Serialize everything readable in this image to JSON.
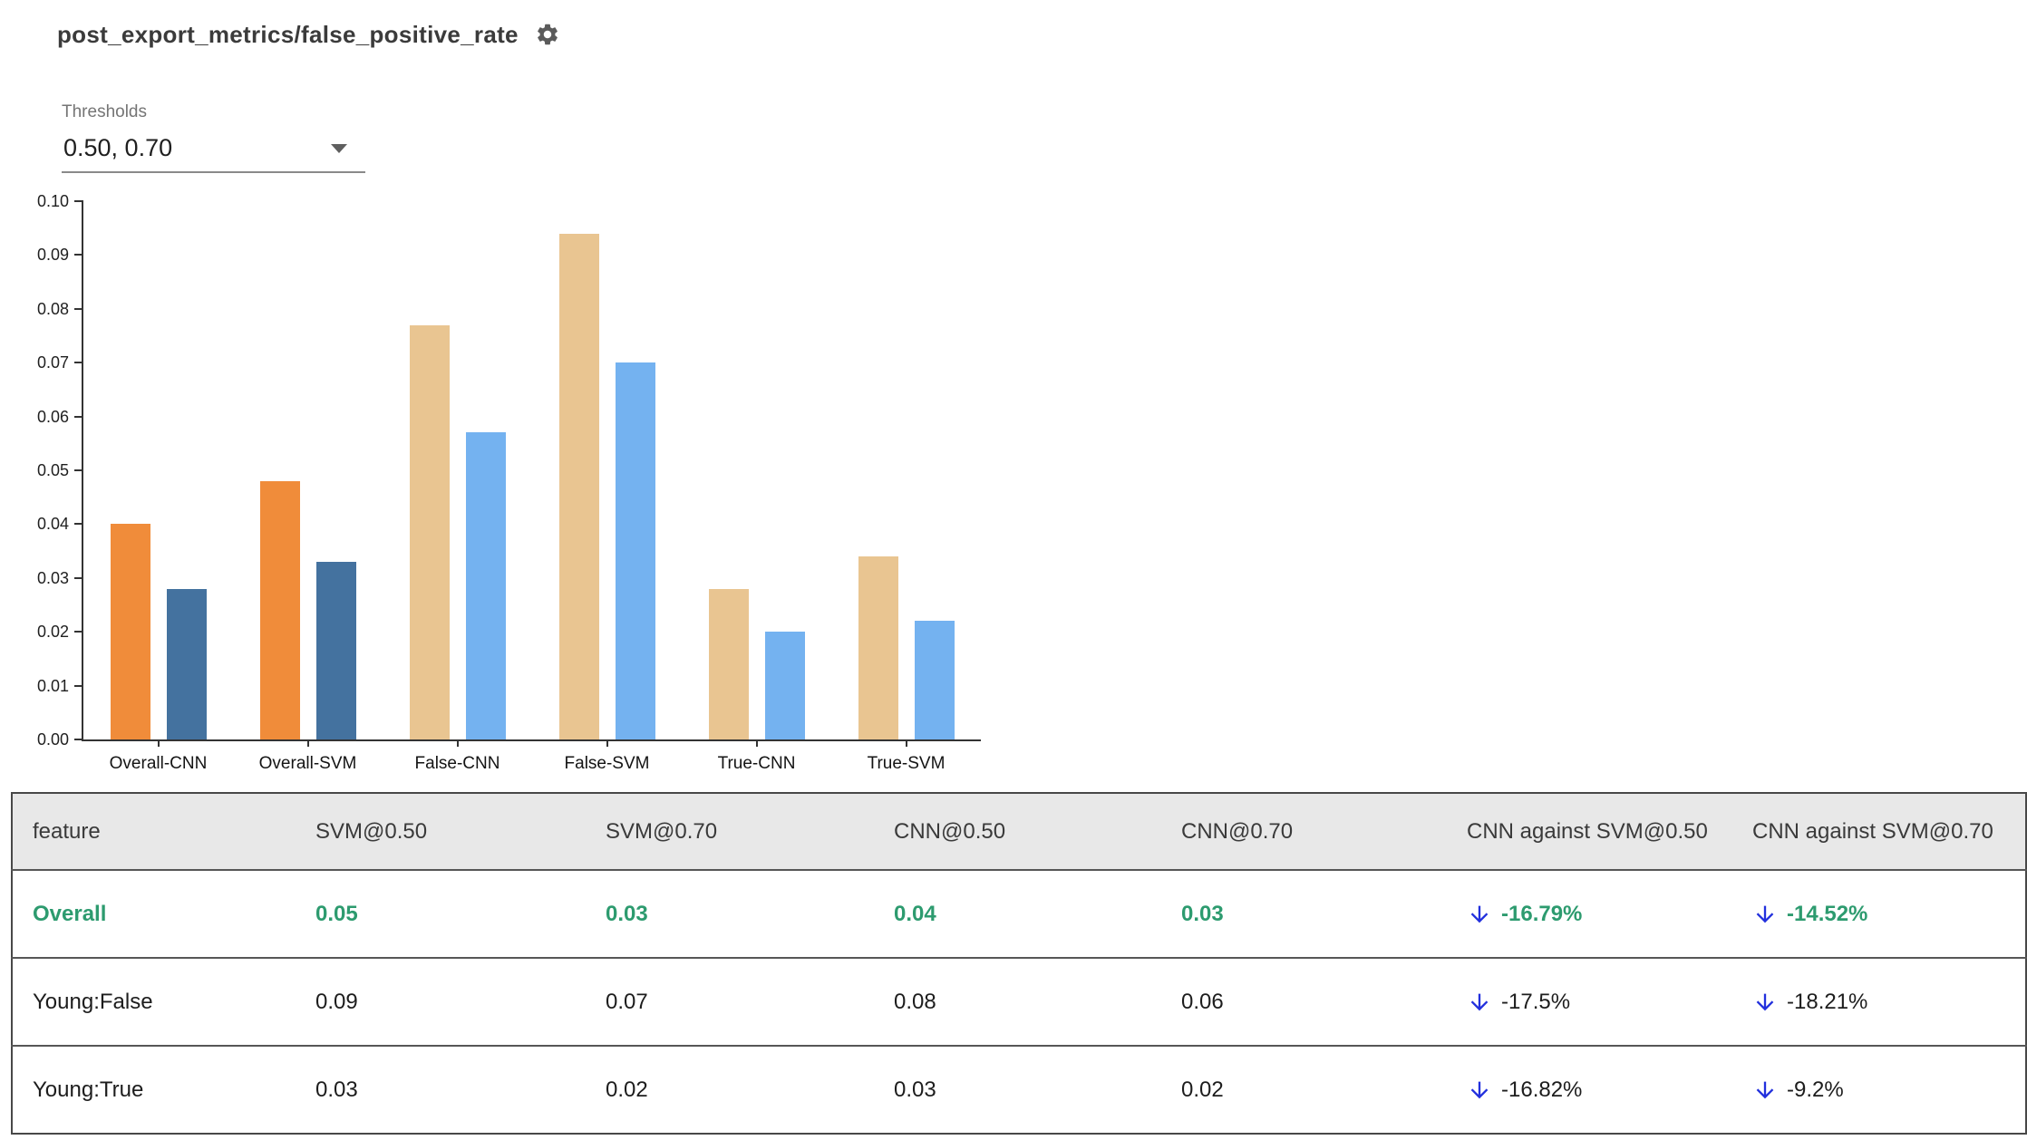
{
  "header": {
    "title": "post_export_metrics/false_positive_rate",
    "settings_icon": "gear-icon"
  },
  "thresholds": {
    "label": "Thresholds",
    "value": "0.50, 0.70"
  },
  "chart_data": {
    "type": "bar",
    "title": "post_export_metrics/false_positive_rate",
    "categories": [
      "Overall-CNN",
      "Overall-SVM",
      "False-CNN",
      "False-SVM",
      "True-CNN",
      "True-SVM"
    ],
    "series": [
      {
        "name": "@0.50",
        "values": [
          0.04,
          0.048,
          0.077,
          0.094,
          0.028,
          0.034
        ],
        "colors": [
          "#f08c3a",
          "#f08c3a",
          "#e9c591",
          "#e9c591",
          "#e9c591",
          "#e9c591"
        ]
      },
      {
        "name": "@0.70",
        "values": [
          0.028,
          0.033,
          0.057,
          0.07,
          0.02,
          0.022
        ],
        "colors": [
          "#44729f",
          "#44729f",
          "#74b2f0",
          "#74b2f0",
          "#74b2f0",
          "#74b2f0"
        ]
      }
    ],
    "ylim": [
      0,
      0.1
    ],
    "yticks": [
      "0.00",
      "0.01",
      "0.02",
      "0.03",
      "0.04",
      "0.05",
      "0.06",
      "0.07",
      "0.08",
      "0.09",
      "0.10"
    ],
    "grid": false,
    "legend": "none",
    "xlabel": "",
    "ylabel": ""
  },
  "table": {
    "headers": [
      "feature",
      "SVM@0.50",
      "SVM@0.70",
      "CNN@0.50",
      "CNN@0.70",
      "CNN against SVM@0.50",
      "CNN against SVM@0.70"
    ],
    "rows": [
      {
        "feature": "Overall",
        "values": [
          "0.05",
          "0.03",
          "0.04",
          "0.03"
        ],
        "deltas": [
          {
            "dir": "down",
            "text": "-16.79%"
          },
          {
            "dir": "down",
            "text": "-14.52%"
          }
        ],
        "highlight": true
      },
      {
        "feature": "Young:False",
        "values": [
          "0.09",
          "0.07",
          "0.08",
          "0.06"
        ],
        "deltas": [
          {
            "dir": "down",
            "text": "-17.5%"
          },
          {
            "dir": "down",
            "text": "-18.21%"
          }
        ],
        "highlight": false
      },
      {
        "feature": "Young:True",
        "values": [
          "0.03",
          "0.02",
          "0.03",
          "0.02"
        ],
        "deltas": [
          {
            "dir": "down",
            "text": "-16.82%"
          },
          {
            "dir": "down",
            "text": "-9.2%"
          }
        ],
        "highlight": false
      }
    ]
  },
  "colors": {
    "highlight_green": "#2d9b6f",
    "arrow_blue": "#2230dd",
    "bar_orange": "#f08c3a",
    "bar_dark_blue": "#44729f",
    "bar_tan": "#e9c591",
    "bar_light_blue": "#74b2f0",
    "header_bg": "#e8e8e8"
  }
}
